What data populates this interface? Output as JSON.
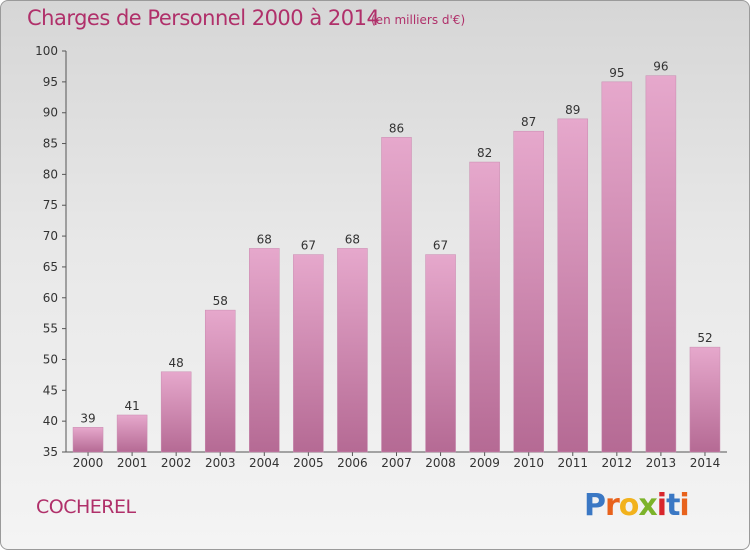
{
  "header": {
    "title": "Charges de Personnel 2000 à 2014",
    "unit": "(en milliers d'€)"
  },
  "footer": {
    "commune": "COCHEREL",
    "logo_letters": [
      "P",
      "r",
      "o",
      "x",
      "i",
      "t",
      "i"
    ],
    "logo_colors": [
      "#3b78c4",
      "#e8621c",
      "#f2b21c",
      "#7cb32a",
      "#d8262c",
      "#3b78c4",
      "#e8621c"
    ]
  },
  "colors": {
    "title": "#b0306a",
    "bar_top": "#e6a8cc",
    "bar_bottom": "#b56a94"
  },
  "chart_data": {
    "type": "bar",
    "title": "Charges de Personnel 2000 à 2014",
    "subtitle": "(en milliers d'€)",
    "categories": [
      "2000",
      "2001",
      "2002",
      "2003",
      "2004",
      "2005",
      "2006",
      "2007",
      "2008",
      "2009",
      "2010",
      "2011",
      "2012",
      "2013",
      "2014"
    ],
    "values": [
      39,
      41,
      48,
      58,
      68,
      67,
      68,
      86,
      67,
      82,
      87,
      89,
      95,
      96,
      52
    ],
    "ylim": [
      35,
      100
    ],
    "yticks": [
      35,
      40,
      45,
      50,
      55,
      60,
      65,
      70,
      75,
      80,
      85,
      90,
      95,
      100
    ],
    "grid": false,
    "xlabel": "",
    "ylabel": ""
  }
}
